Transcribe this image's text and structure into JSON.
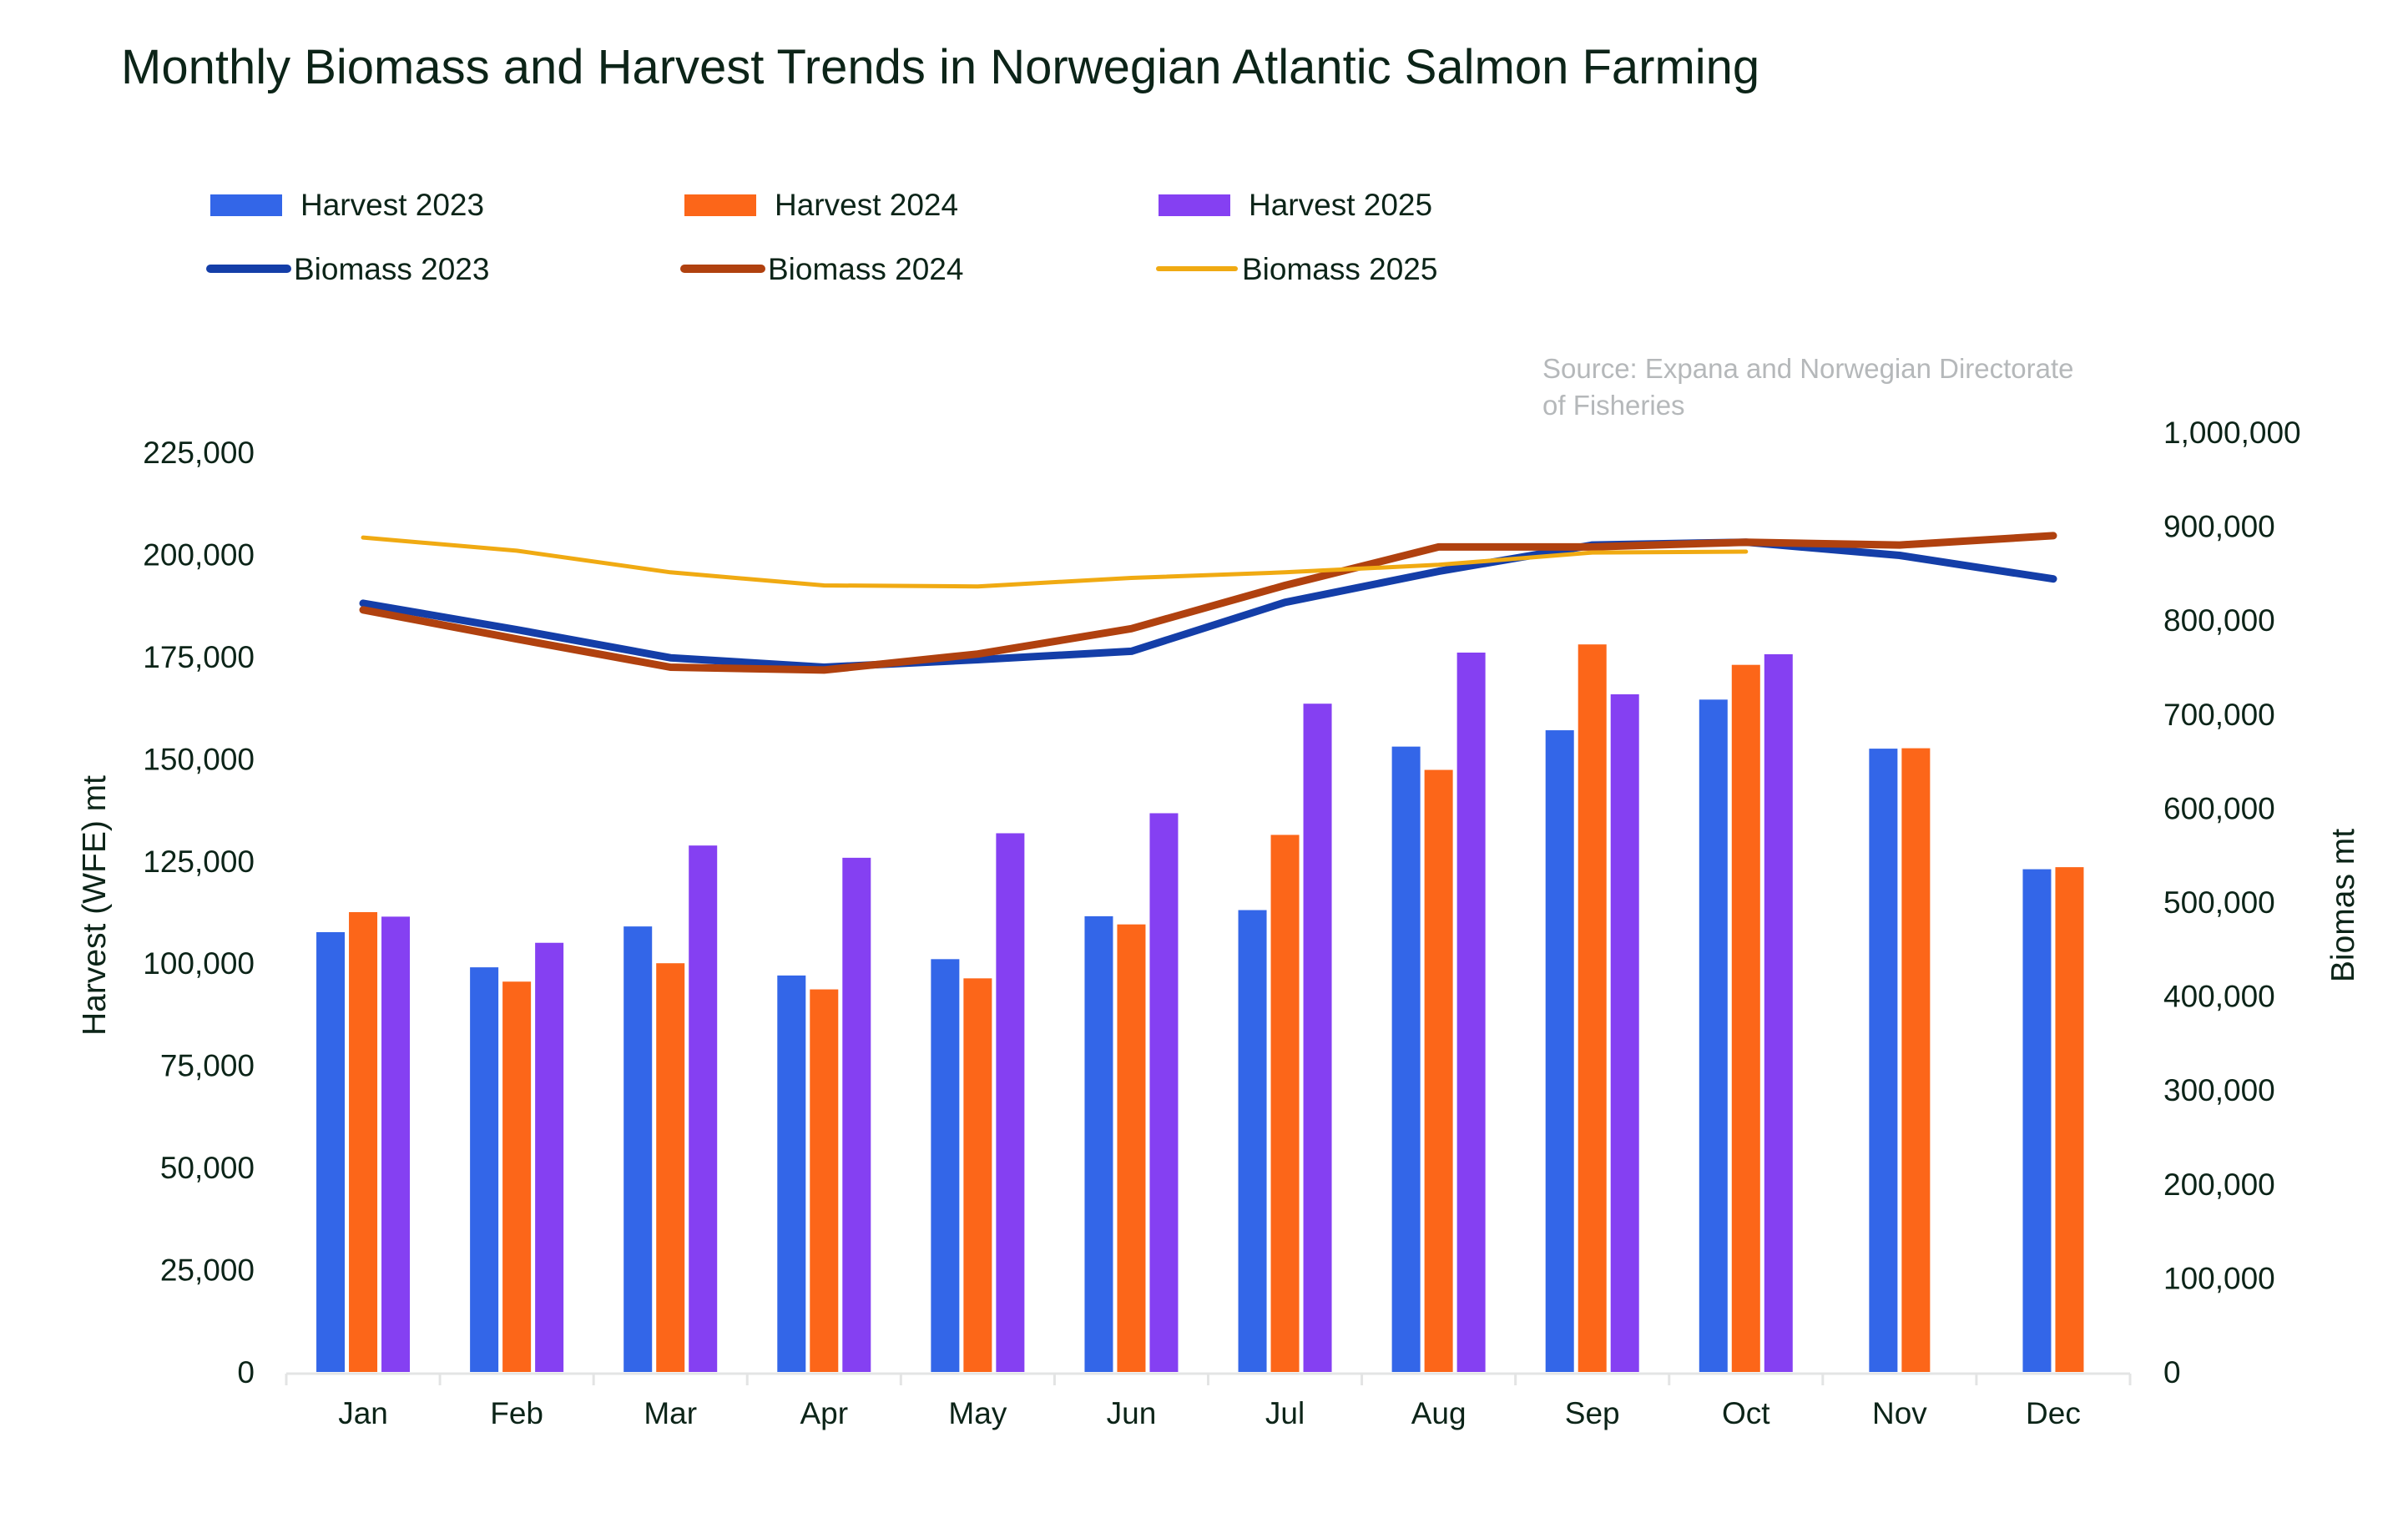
{
  "chart_data": {
    "type": "bar",
    "title": "Monthly Biomass  and Harvest Trends in Norwegian Atlantic Salmon Farming",
    "source": [
      "Source: Expana and Norwegian Directorate",
      "of Fisheries"
    ],
    "categories": [
      "Jan",
      "Feb",
      "Mar",
      "Apr",
      "May",
      "Jun",
      "Jul",
      "Aug",
      "Sep",
      "Oct",
      "Nov",
      "Dec"
    ],
    "ylabel": "Harvest (WFE) mt",
    "y2label": "Biomas mt",
    "ylim": [
      0,
      225000
    ],
    "y2lim": [
      0,
      1000000
    ],
    "yticks": [
      "0",
      "25,000",
      "50,000",
      "75,000",
      "100,000",
      "125,000",
      "150,000",
      "175,000",
      "200,000",
      "225,000"
    ],
    "y2ticks": [
      "0",
      "100,000",
      "200,000",
      "300,000",
      "400,000",
      "500,000",
      "600,000",
      "700,000",
      "800,000",
      "900,000",
      "1,000,000"
    ],
    "grid": false,
    "legend_position": "top-left",
    "bar_series": [
      {
        "name": "Harvest 2023",
        "color": "#3366e8",
        "values": [
          107600,
          99000,
          109000,
          97000,
          101000,
          111500,
          113000,
          153000,
          157000,
          164500,
          152500,
          123000
        ]
      },
      {
        "name": "Harvest 2024",
        "color": "#fc6619",
        "values": [
          112500,
          95500,
          100000,
          93600,
          96300,
          109500,
          131400,
          147300,
          178000,
          173000,
          152600,
          123500
        ]
      },
      {
        "name": "Harvest 2025",
        "color": "#8540f2",
        "values": [
          111400,
          105000,
          128800,
          125800,
          131800,
          136700,
          163500,
          176000,
          165800,
          175600,
          null,
          null
        ]
      }
    ],
    "line_series": [
      {
        "name": "Biomass 2023",
        "color": "#143ea8",
        "width": "thick",
        "values": [
          818000,
          790000,
          760000,
          750000,
          758000,
          767000,
          819000,
          852000,
          880000,
          883000,
          869000,
          844000
        ]
      },
      {
        "name": "Biomass 2024",
        "color": "#b0410f",
        "width": "thick",
        "values": [
          811000,
          780000,
          750000,
          747000,
          764000,
          791000,
          837000,
          878000,
          878000,
          883000,
          880000,
          890000
        ]
      },
      {
        "name": "Biomass  2025",
        "color": "#f0aa12",
        "width": "thin",
        "values": [
          888000,
          874000,
          851000,
          837000,
          836000,
          845000,
          851000,
          859000,
          872000,
          873000,
          null,
          null
        ]
      }
    ]
  }
}
